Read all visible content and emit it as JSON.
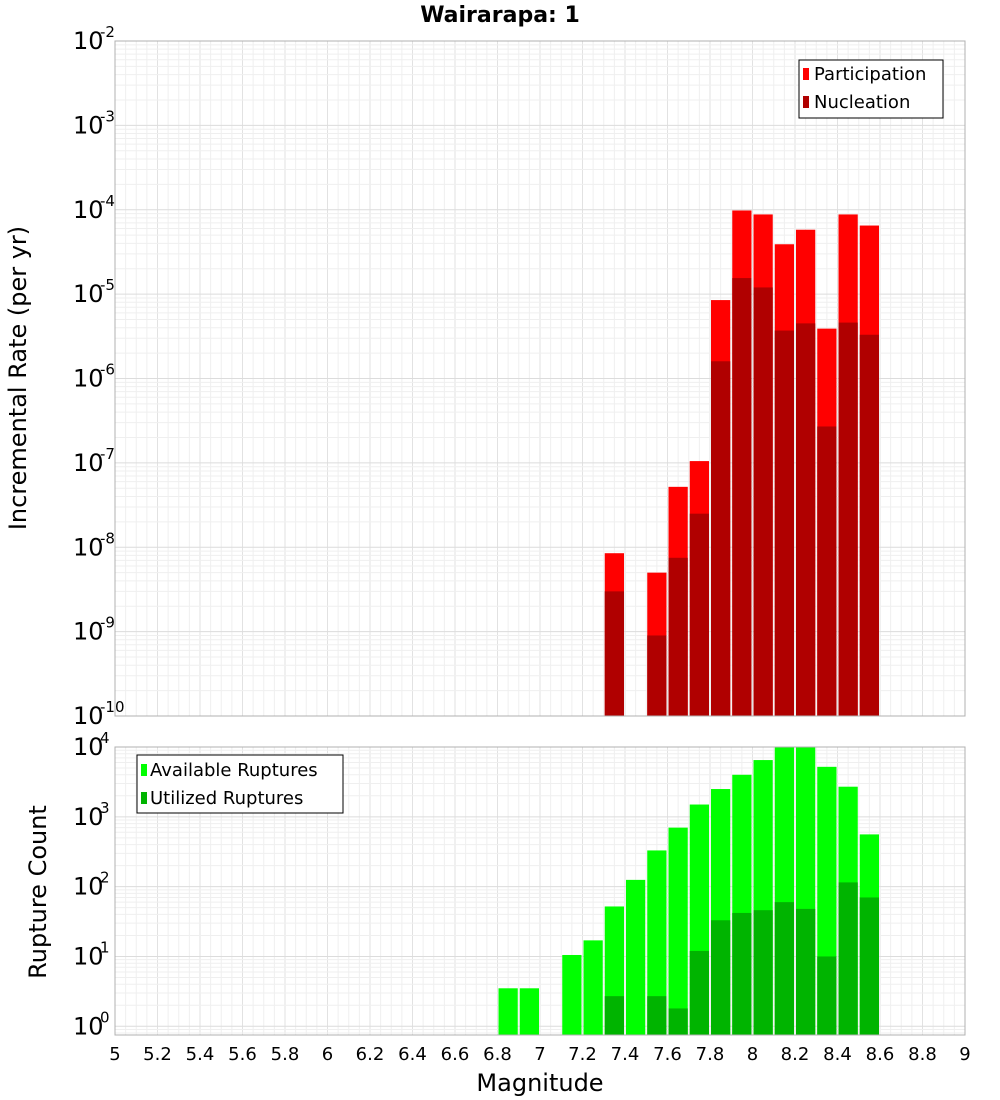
{
  "chart_data": [
    {
      "type": "bar",
      "title": "Wairarapa: 1",
      "xlabel": "",
      "ylabel": "Incremental Rate (per yr)",
      "yscale": "log",
      "xlim": [
        5,
        9
      ],
      "ylim": [
        1e-10,
        0.01
      ],
      "grid": true,
      "legend_position": "top-right",
      "ytick_labels": [
        {
          "base": "10",
          "exp": "-10"
        },
        {
          "base": "10",
          "exp": "-9"
        },
        {
          "base": "10",
          "exp": "-8"
        },
        {
          "base": "10",
          "exp": "-7"
        },
        {
          "base": "10",
          "exp": "-6"
        },
        {
          "base": "10",
          "exp": "-5"
        },
        {
          "base": "10",
          "exp": "-4"
        },
        {
          "base": "10",
          "exp": "-3"
        },
        {
          "base": "10",
          "exp": "-2"
        }
      ],
      "x": [
        7.35,
        7.55,
        7.65,
        7.75,
        7.85,
        7.95,
        8.05,
        8.15,
        8.25,
        8.35,
        8.45,
        8.55
      ],
      "series": [
        {
          "name": "Participation",
          "color": "#ff0000",
          "values": [
            8.5e-09,
            5e-09,
            5.2e-08,
            1.05e-07,
            8.5e-06,
            9.8e-05,
            8.8e-05,
            3.9e-05,
            5.8e-05,
            3.9e-06,
            8.8e-05,
            6.5e-05
          ]
        },
        {
          "name": "Nucleation",
          "color": "#b00000",
          "values": [
            3e-09,
            9e-10,
            7.5e-09,
            2.5e-08,
            1.6e-06,
            1.55e-05,
            1.2e-05,
            3.7e-06,
            4.5e-06,
            2.7e-07,
            4.6e-06,
            3.3e-06
          ]
        }
      ]
    },
    {
      "type": "bar",
      "xlabel": "Magnitude",
      "ylabel": "Rupture Count",
      "yscale": "log",
      "xlim": [
        5,
        9
      ],
      "ylim": [
        0.75,
        10000
      ],
      "grid": true,
      "legend_position": "top-left",
      "xtick_labels": [
        "5",
        "5.2",
        "5.4",
        "5.6",
        "5.8",
        "6",
        "6.2",
        "6.4",
        "6.6",
        "6.8",
        "7",
        "7.2",
        "7.4",
        "7.6",
        "7.8",
        "8",
        "8.2",
        "8.4",
        "8.6",
        "8.8",
        "9"
      ],
      "ytick_labels": [
        {
          "base": "10",
          "exp": "0"
        },
        {
          "base": "10",
          "exp": "1"
        },
        {
          "base": "10",
          "exp": "2"
        },
        {
          "base": "10",
          "exp": "3"
        },
        {
          "base": "10",
          "exp": "4"
        }
      ],
      "x": [
        6.85,
        6.95,
        7.15,
        7.25,
        7.35,
        7.45,
        7.55,
        7.65,
        7.75,
        7.85,
        7.95,
        8.05,
        8.15,
        8.25,
        8.35,
        8.45,
        8.55
      ],
      "series": [
        {
          "name": "Available Ruptures",
          "color": "#00ff00",
          "values": [
            3.5,
            3.5,
            10.5,
            17,
            52,
            125,
            330,
            700,
            1500,
            2500,
            4000,
            6500,
            10000,
            10000,
            5200,
            2700,
            560
          ]
        },
        {
          "name": "Utilized Ruptures",
          "color": "#00b400",
          "values": [
            0,
            0,
            0,
            0,
            2.7,
            0,
            2.7,
            1.8,
            12,
            33,
            42,
            46,
            60,
            48,
            10,
            115,
            70
          ]
        }
      ]
    }
  ]
}
